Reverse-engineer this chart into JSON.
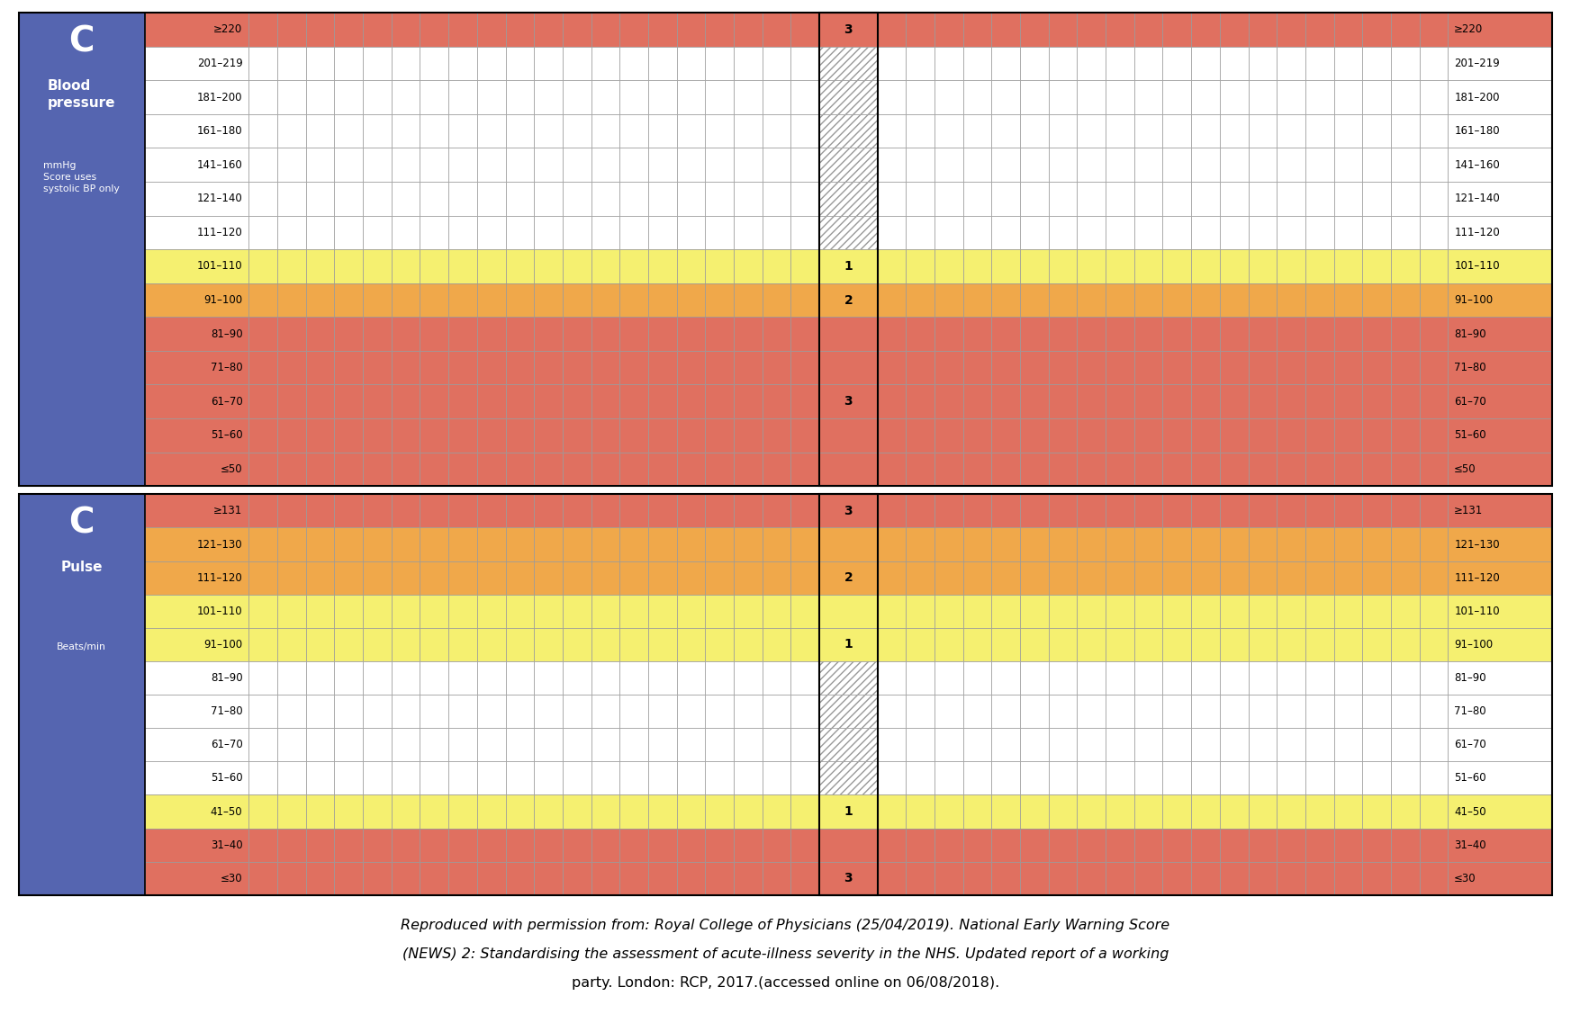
{
  "bp_rows": [
    {
      "label": "≥220",
      "score": "3",
      "color": "#E07060",
      "score_color": "#E07060",
      "hatch": false
    },
    {
      "label": "201–219",
      "score": "",
      "color": "#FFFFFF",
      "score_color": "hatch",
      "hatch": true
    },
    {
      "label": "181–200",
      "score": "",
      "color": "#FFFFFF",
      "score_color": "hatch",
      "hatch": true
    },
    {
      "label": "161–180",
      "score": "",
      "color": "#FFFFFF",
      "score_color": "hatch",
      "hatch": true
    },
    {
      "label": "141–160",
      "score": "",
      "color": "#FFFFFF",
      "score_color": "hatch",
      "hatch": true
    },
    {
      "label": "121–140",
      "score": "",
      "color": "#FFFFFF",
      "score_color": "hatch",
      "hatch": true
    },
    {
      "label": "111–120",
      "score": "",
      "color": "#FFFFFF",
      "score_color": "hatch",
      "hatch": true
    },
    {
      "label": "101–110",
      "score": "1",
      "color": "#F5F070",
      "score_color": "#F5F070",
      "hatch": false
    },
    {
      "label": "91–100",
      "score": "2",
      "color": "#F0A84A",
      "score_color": "#F0A84A",
      "hatch": false
    },
    {
      "label": "81–90",
      "score": "",
      "color": "#E07060",
      "score_color": "#E07060",
      "hatch": false
    },
    {
      "label": "71–80",
      "score": "",
      "color": "#E07060",
      "score_color": "#E07060",
      "hatch": false
    },
    {
      "label": "61–70",
      "score": "3",
      "color": "#E07060",
      "score_color": "#E07060",
      "hatch": false
    },
    {
      "label": "51–60",
      "score": "",
      "color": "#E07060",
      "score_color": "#E07060",
      "hatch": false
    },
    {
      "label": "≤50",
      "score": "",
      "color": "#E07060",
      "score_color": "#E07060",
      "hatch": false
    }
  ],
  "pulse_rows": [
    {
      "label": "≥131",
      "score": "3",
      "color": "#E07060",
      "score_color": "#E07060",
      "hatch": false
    },
    {
      "label": "121–130",
      "score": "",
      "color": "#F0A84A",
      "score_color": "#F0A84A",
      "hatch": false
    },
    {
      "label": "111–120",
      "score": "2",
      "color": "#F0A84A",
      "score_color": "#F0A84A",
      "hatch": false
    },
    {
      "label": "101–110",
      "score": "",
      "color": "#F5F070",
      "score_color": "#F5F070",
      "hatch": false
    },
    {
      "label": "91–100",
      "score": "1",
      "color": "#F5F070",
      "score_color": "#F5F070",
      "hatch": false
    },
    {
      "label": "81–90",
      "score": "",
      "color": "#FFFFFF",
      "score_color": "hatch",
      "hatch": true
    },
    {
      "label": "71–80",
      "score": "",
      "color": "#FFFFFF",
      "score_color": "hatch",
      "hatch": true
    },
    {
      "label": "61–70",
      "score": "",
      "color": "#FFFFFF",
      "score_color": "hatch",
      "hatch": true
    },
    {
      "label": "51–60",
      "score": "",
      "color": "#FFFFFF",
      "score_color": "hatch",
      "hatch": true
    },
    {
      "label": "41–50",
      "score": "1",
      "color": "#F5F070",
      "score_color": "#F5F070",
      "hatch": false
    },
    {
      "label": "31–40",
      "score": "",
      "color": "#E07060",
      "score_color": "#E07060",
      "hatch": false
    },
    {
      "label": "≤30",
      "score": "3",
      "color": "#E07060",
      "score_color": "#E07060",
      "hatch": false
    }
  ],
  "num_data_cols": 20,
  "panel_color": "#5565B0",
  "grid_color": "#999999",
  "outer_border_color": "#333333",
  "bp_title_C": "C",
  "bp_title_main": "Blood\npressure",
  "bp_title_sub": "mmHg\nScore uses\nsystolic BP only",
  "pulse_title_C": "C",
  "pulse_title_main": "Pulse",
  "pulse_title_sub": "Beats/min",
  "footer_line1_normal": "Reproduced with permission from: Royal College of Physicians (25/04/2019). ",
  "footer_line1_italic": "National Early Warning Score",
  "footer_line2_italic": "(NEWS) 2: Standardising the assessment of acute-illness severity in the NHS",
  "footer_line2_normal": ". Updated report of a working",
  "footer_line3_normal": "party. London: RCP, 2017.(accessed online on 06/08/2018)."
}
